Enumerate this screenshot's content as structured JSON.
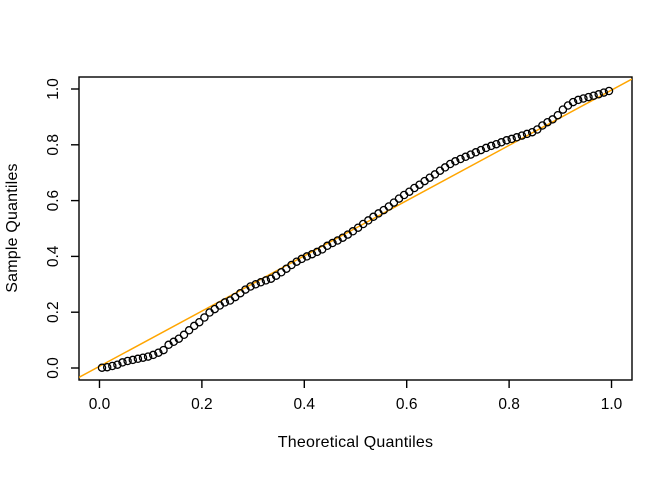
{
  "chart_data": {
    "type": "scatter",
    "subtype": "qq-plot",
    "title": "",
    "xlabel": "Theoretical Quantiles",
    "ylabel": "Sample Quantiles",
    "xlim": [
      -0.04,
      1.04
    ],
    "ylim": [
      -0.043,
      1.043
    ],
    "grid": false,
    "legend": false,
    "x_tick_labels": [
      "0.0",
      "0.2",
      "0.4",
      "0.6",
      "0.8",
      "1.0"
    ],
    "x_tick_values": [
      0.0,
      0.2,
      0.4,
      0.6,
      0.8,
      1.0
    ],
    "y_tick_labels": [
      "0.0",
      "0.2",
      "0.4",
      "0.6",
      "0.8",
      "1.0"
    ],
    "y_tick_values": [
      0.0,
      0.2,
      0.4,
      0.6,
      0.8,
      1.0
    ],
    "point_style": {
      "shape": "open-circle",
      "stroke_color": "#000000",
      "fill": "none",
      "radius_px": 3.6
    },
    "reference_line": {
      "name": "qqline",
      "slope": 0.99,
      "intercept": 0.006,
      "color": "#FFA500"
    },
    "series": [
      {
        "name": "sample-vs-theoretical",
        "theoretical": [
          0.005,
          0.015,
          0.025,
          0.035,
          0.045,
          0.055,
          0.065,
          0.075,
          0.085,
          0.095,
          0.105,
          0.115,
          0.125,
          0.135,
          0.145,
          0.155,
          0.165,
          0.175,
          0.185,
          0.195,
          0.205,
          0.215,
          0.225,
          0.235,
          0.245,
          0.255,
          0.265,
          0.275,
          0.285,
          0.295,
          0.305,
          0.315,
          0.325,
          0.335,
          0.345,
          0.355,
          0.365,
          0.375,
          0.385,
          0.395,
          0.405,
          0.415,
          0.425,
          0.435,
          0.445,
          0.455,
          0.465,
          0.475,
          0.485,
          0.495,
          0.505,
          0.515,
          0.525,
          0.535,
          0.545,
          0.555,
          0.565,
          0.575,
          0.585,
          0.595,
          0.605,
          0.615,
          0.625,
          0.635,
          0.645,
          0.655,
          0.665,
          0.675,
          0.685,
          0.695,
          0.705,
          0.715,
          0.725,
          0.735,
          0.745,
          0.755,
          0.765,
          0.775,
          0.785,
          0.795,
          0.805,
          0.815,
          0.825,
          0.835,
          0.845,
          0.855,
          0.865,
          0.875,
          0.885,
          0.895,
          0.905,
          0.915,
          0.925,
          0.935,
          0.945,
          0.955,
          0.965,
          0.975,
          0.985,
          0.995
        ],
        "sample": [
          0.001,
          0.003,
          0.007,
          0.012,
          0.02,
          0.025,
          0.029,
          0.033,
          0.037,
          0.041,
          0.047,
          0.055,
          0.064,
          0.083,
          0.094,
          0.105,
          0.119,
          0.135,
          0.151,
          0.164,
          0.181,
          0.199,
          0.211,
          0.224,
          0.235,
          0.242,
          0.254,
          0.268,
          0.281,
          0.292,
          0.3,
          0.307,
          0.314,
          0.32,
          0.331,
          0.343,
          0.356,
          0.369,
          0.381,
          0.391,
          0.4,
          0.408,
          0.416,
          0.425,
          0.438,
          0.448,
          0.457,
          0.467,
          0.478,
          0.49,
          0.503,
          0.516,
          0.529,
          0.542,
          0.554,
          0.566,
          0.579,
          0.593,
          0.607,
          0.62,
          0.632,
          0.645,
          0.657,
          0.67,
          0.682,
          0.694,
          0.707,
          0.719,
          0.731,
          0.741,
          0.749,
          0.757,
          0.765,
          0.773,
          0.781,
          0.789,
          0.796,
          0.802,
          0.809,
          0.816,
          0.821,
          0.827,
          0.833,
          0.839,
          0.845,
          0.855,
          0.869,
          0.881,
          0.891,
          0.906,
          0.926,
          0.941,
          0.953,
          0.961,
          0.966,
          0.971,
          0.976,
          0.981,
          0.987,
          0.993
        ]
      }
    ]
  },
  "colors": {
    "foreground": "#000000",
    "background": "#ffffff",
    "reference_line": "#FFA500"
  }
}
